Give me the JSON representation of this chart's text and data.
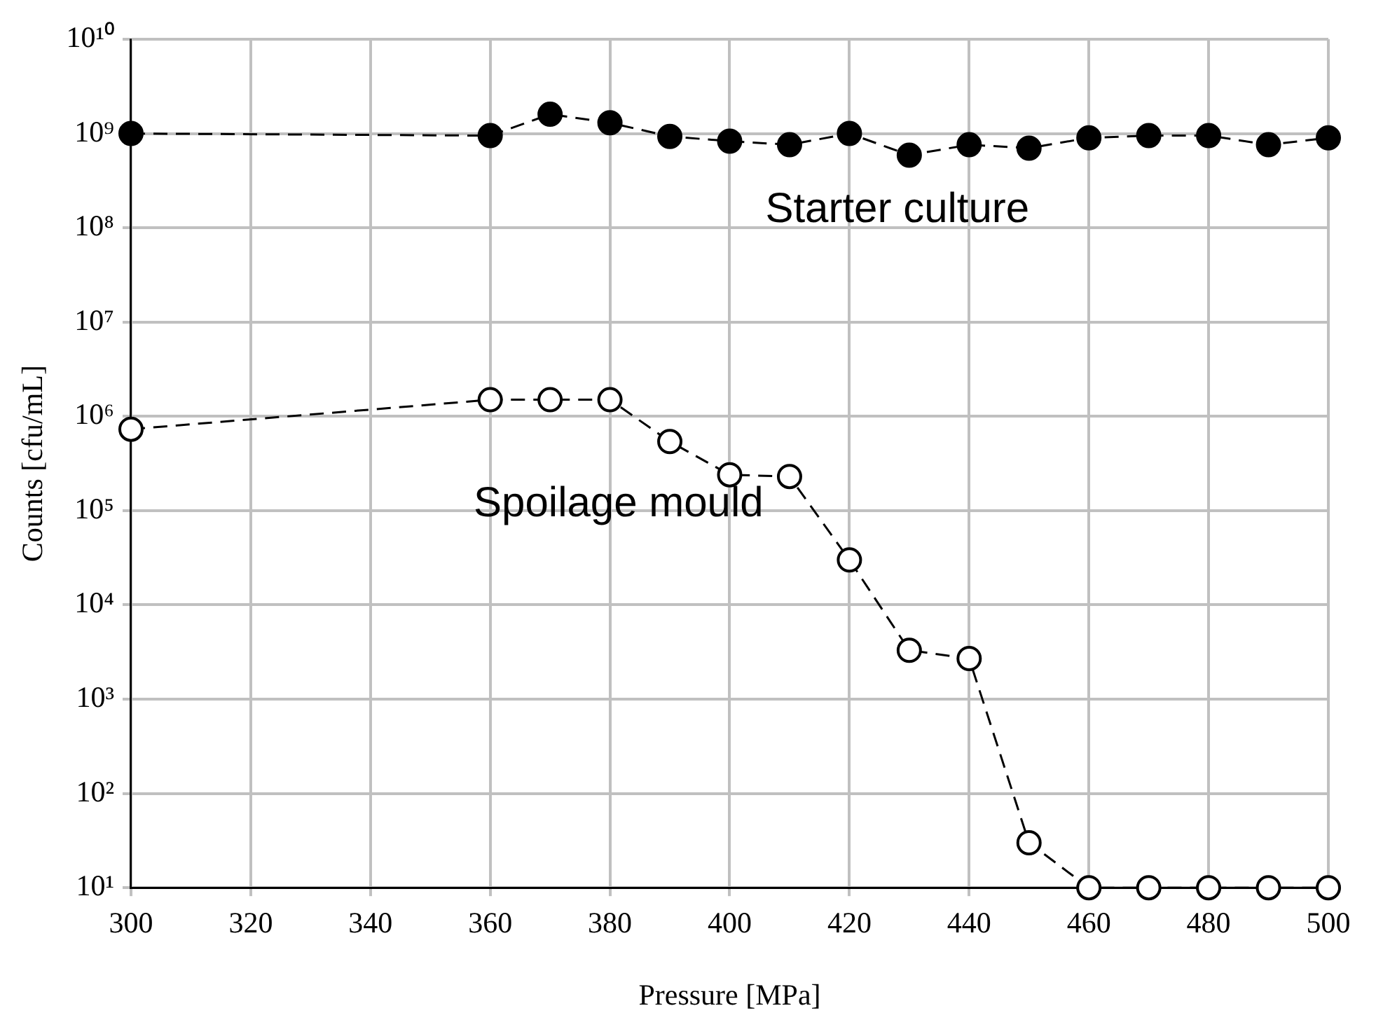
{
  "chart_data": {
    "type": "line",
    "xlabel": "Pressure [MPa]",
    "ylabel": "Counts [cfu/mL]",
    "x": [
      300,
      360,
      370,
      380,
      390,
      400,
      410,
      420,
      430,
      440,
      450,
      460,
      470,
      480,
      490,
      500
    ],
    "series": [
      {
        "name": "Starter culture",
        "color": "#000000",
        "values": [
          1000000000,
          950000000,
          1600000000,
          1300000000,
          930000000,
          830000000,
          760000000,
          1000000000,
          590000000,
          760000000,
          700000000,
          900000000,
          950000000,
          950000000,
          760000000,
          900000000
        ]
      },
      {
        "name": "Spoilage mould",
        "color": "#000000",
        "values": [
          730000,
          1500000,
          1500000,
          1500000,
          540000,
          240000,
          230000,
          30000,
          3300,
          2700,
          30,
          10,
          10,
          10,
          10,
          10
        ]
      }
    ],
    "log": "y",
    "grid": true,
    "marker": "circle",
    "line_style": "dashed",
    "xlim": [
      300,
      500
    ],
    "xticks": [
      300,
      320,
      340,
      360,
      380,
      400,
      420,
      440,
      460,
      480,
      500
    ],
    "ylim": [
      10,
      10000000000
    ],
    "yticks": [
      {
        "value": 10,
        "label": "10¹"
      },
      {
        "value": 100,
        "label": "10²"
      },
      {
        "value": 1000,
        "label": "10³"
      },
      {
        "value": 10000,
        "label": "10⁴"
      },
      {
        "value": 100000,
        "label": "10⁵"
      },
      {
        "value": 1000000,
        "label": "10⁶"
      },
      {
        "value": 10000000,
        "label": "10⁷"
      },
      {
        "value": 100000000,
        "label": "10⁸"
      },
      {
        "value": 1000000000,
        "label": "10⁹"
      },
      {
        "value": 10000000000,
        "label": "10¹⁰"
      }
    ]
  }
}
